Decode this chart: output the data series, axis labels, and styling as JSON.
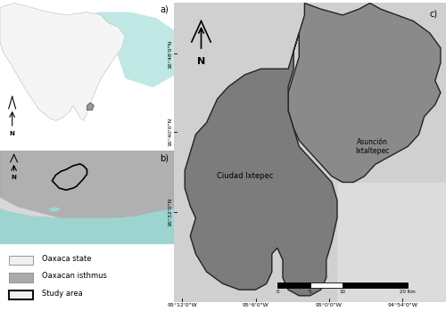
{
  "panel_a_label": "a)",
  "panel_b_label": "b)",
  "panel_c_label": "c)",
  "ocean_color": "#9dd4d0",
  "ocean_color2": "#b8e0dc",
  "land_color": "#f0f0f0",
  "terrain_bg": "#d2d2d2",
  "isthmus_color": "#aaaaaa",
  "study_dark": "#888888",
  "study_darker": "#787878",
  "text_color": "#000000",
  "legend_items": [
    "Oaxaca state",
    "Oaxacan isthmus",
    "Study area"
  ],
  "ciudad_label": "Ciudad Ixtepec",
  "asuncion_label": "Asunción\nIxtaltepec",
  "lat_labels": [
    "16°48'0\"N",
    "16°40'0\"N",
    "16°32'0\"N"
  ],
  "lon_labels": [
    "95°12'0\"W",
    "95°6'0\"W",
    "95°0'0\"W",
    "94°54'0\"W"
  ],
  "scale_labels": [
    "0",
    "5",
    "10",
    "20 Km"
  ],
  "font_panel": 7,
  "font_label": 4.5,
  "font_city": 6,
  "font_legend": 6
}
